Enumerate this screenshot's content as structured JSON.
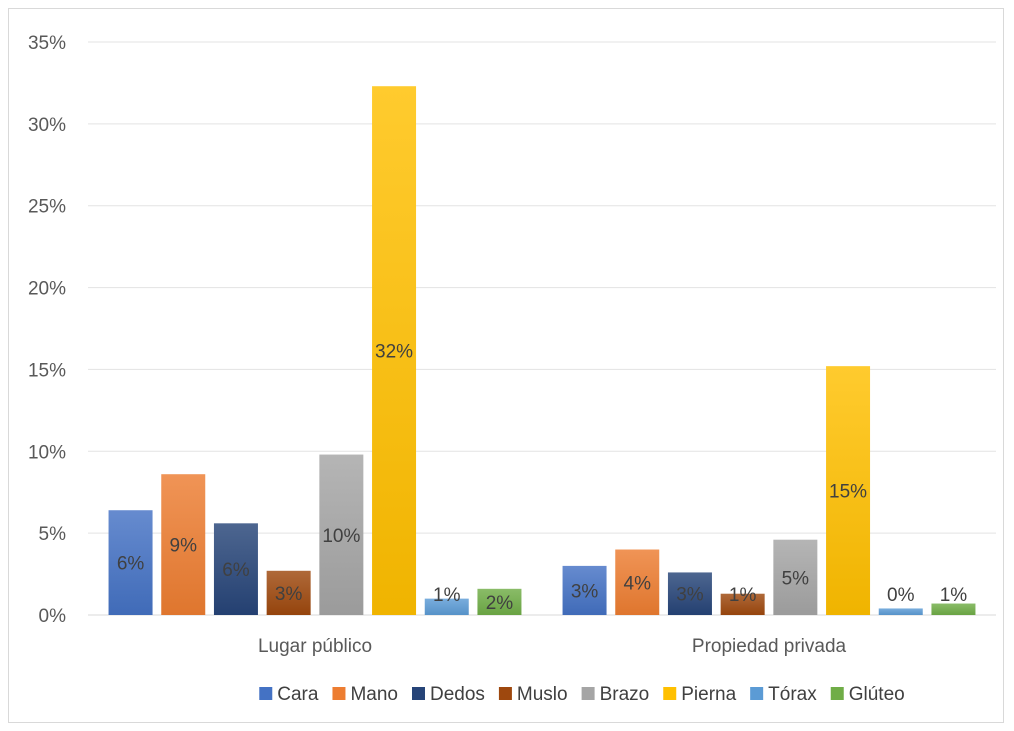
{
  "chart_data": {
    "type": "bar",
    "categories": [
      "Lugar público",
      "Propiedad privada"
    ],
    "series": [
      {
        "name": "Cara",
        "color": "#4472C4",
        "values": [
          6.4,
          3.0
        ],
        "labels": [
          "6%",
          "3%"
        ]
      },
      {
        "name": "Mano",
        "color": "#ED7D31",
        "values": [
          8.6,
          4.0
        ],
        "labels": [
          "9%",
          "4%"
        ]
      },
      {
        "name": "Dedos",
        "color": "#264478",
        "values": [
          5.6,
          2.6
        ],
        "labels": [
          "6%",
          "3%"
        ]
      },
      {
        "name": "Muslo",
        "color": "#9E480E",
        "values": [
          2.7,
          1.3
        ],
        "labels": [
          "3%",
          "1%"
        ]
      },
      {
        "name": "Brazo",
        "color": "#A5A5A5",
        "values": [
          9.8,
          4.6
        ],
        "labels": [
          "10%",
          "5%"
        ]
      },
      {
        "name": "Pierna",
        "color": "#FFC000",
        "values": [
          32.3,
          15.2
        ],
        "labels": [
          "32%",
          "15%"
        ]
      },
      {
        "name": "Tórax",
        "color": "#5B9BD5",
        "values": [
          1.0,
          0.4
        ],
        "labels": [
          "1%",
          "0%"
        ]
      },
      {
        "name": "Glúteo",
        "color": "#70AD47",
        "values": [
          1.6,
          0.7
        ],
        "labels": [
          "2%",
          "1%"
        ]
      }
    ],
    "ylim": [
      0,
      35
    ],
    "yticks": [
      0,
      5,
      10,
      15,
      20,
      25,
      30,
      35
    ],
    "ytick_labels": [
      "0%",
      "5%",
      "10%",
      "15%",
      "20%",
      "25%",
      "30%",
      "35%"
    ],
    "title": "",
    "xlabel": "",
    "ylabel": "",
    "grid": true,
    "legend_position": "bottom",
    "data_label_position": "center"
  }
}
